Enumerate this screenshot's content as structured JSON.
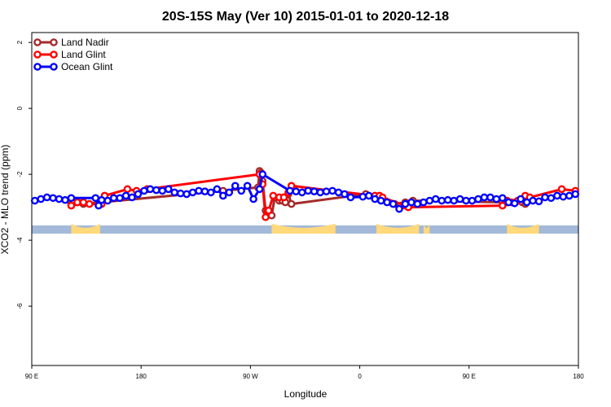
{
  "chart_data": {
    "type": "line",
    "title": "20S-15S May (Ver 10)   2015-01-01 to 2020-12-18",
    "xlabel": "Longitude",
    "ylabel": "XCO2 - MLO trend (ppm)",
    "xlim": [
      90,
      450
    ],
    "ylim": [
      -7.8,
      2.3
    ],
    "x_ticks": [
      {
        "value": 90,
        "label": "90 E"
      },
      {
        "value": 162,
        "label": "180"
      },
      {
        "value": 234,
        "label": "90 W"
      },
      {
        "value": 306,
        "label": "0"
      },
      {
        "value": 378,
        "label": "90 E"
      },
      {
        "value": 450,
        "label": "180"
      }
    ],
    "y_ticks": [
      {
        "value": 2,
        "label": "2"
      },
      {
        "value": 0,
        "label": "0"
      },
      {
        "value": -2,
        "label": "-2"
      },
      {
        "value": -4,
        "label": "-4"
      },
      {
        "value": -6,
        "label": "-6"
      }
    ],
    "legend_position": "top-left",
    "series": [
      {
        "name": "Land Nadir",
        "color": "#a52a2a",
        "points": [
          [
            116,
            -2.9
          ],
          [
            118,
            -2.85
          ],
          [
            120,
            -2.85
          ],
          [
            124,
            -2.9
          ],
          [
            216,
            -2.5
          ],
          [
            239,
            -2.4
          ],
          [
            240,
            -1.9
          ],
          [
            241,
            -1.95
          ],
          [
            242,
            -2.2
          ],
          [
            244,
            -3.1
          ],
          [
            245,
            -3.2
          ],
          [
            248,
            -3.25
          ],
          [
            250,
            -2.7
          ],
          [
            253,
            -2.8
          ],
          [
            255,
            -2.8
          ],
          [
            256,
            -2.7
          ],
          [
            257,
            -2.85
          ],
          [
            259,
            -2.6
          ],
          [
            261,
            -2.9
          ],
          [
            310,
            -2.6
          ],
          [
            320,
            -2.75
          ],
          [
            329,
            -2.9
          ],
          [
            333,
            -2.95
          ],
          [
            336,
            -2.85
          ],
          [
            341,
            -2.8
          ],
          [
            400,
            -2.85
          ],
          [
            403,
            -2.85
          ],
          [
            413,
            -2.85
          ],
          [
            415,
            -2.9
          ]
        ]
      },
      {
        "name": "Land Glint",
        "color": "#ff0000",
        "points": [
          [
            116,
            -2.95
          ],
          [
            120,
            -2.85
          ],
          [
            124,
            -2.85
          ],
          [
            128,
            -2.9
          ],
          [
            136,
            -2.9
          ],
          [
            138,
            -2.65
          ],
          [
            153,
            -2.45
          ],
          [
            159,
            -2.5
          ],
          [
            166,
            -2.45
          ],
          [
            240,
            -2.0
          ],
          [
            242,
            -2.3
          ],
          [
            244,
            -3.3
          ],
          [
            246,
            -3.1
          ],
          [
            249,
            -2.65
          ],
          [
            253,
            -2.7
          ],
          [
            256,
            -2.7
          ],
          [
            259,
            -2.55
          ],
          [
            261,
            -2.35
          ],
          [
            316,
            -2.65
          ],
          [
            319,
            -2.65
          ],
          [
            321,
            -2.7
          ],
          [
            336,
            -2.95
          ],
          [
            338,
            -3.0
          ],
          [
            400,
            -2.95
          ],
          [
            403,
            -2.8
          ],
          [
            406,
            -2.85
          ],
          [
            410,
            -2.8
          ],
          [
            415,
            -2.65
          ],
          [
            418,
            -2.7
          ],
          [
            439,
            -2.45
          ],
          [
            448,
            -2.5
          ]
        ]
      },
      {
        "name": "Ocean Glint",
        "color": "#0000ff",
        "points": [
          [
            92,
            -2.8
          ],
          [
            96,
            -2.75
          ],
          [
            100,
            -2.7
          ],
          [
            104,
            -2.72
          ],
          [
            108,
            -2.75
          ],
          [
            112,
            -2.78
          ],
          [
            116,
            -2.72
          ],
          [
            132,
            -2.72
          ],
          [
            134,
            -2.95
          ],
          [
            136,
            -2.78
          ],
          [
            140,
            -2.8
          ],
          [
            144,
            -2.72
          ],
          [
            148,
            -2.72
          ],
          [
            152,
            -2.65
          ],
          [
            156,
            -2.7
          ],
          [
            160,
            -2.6
          ],
          [
            164,
            -2.5
          ],
          [
            168,
            -2.45
          ],
          [
            172,
            -2.48
          ],
          [
            176,
            -2.5
          ],
          [
            180,
            -2.45
          ],
          [
            184,
            -2.55
          ],
          [
            188,
            -2.58
          ],
          [
            192,
            -2.6
          ],
          [
            196,
            -2.55
          ],
          [
            200,
            -2.5
          ],
          [
            204,
            -2.52
          ],
          [
            208,
            -2.55
          ],
          [
            212,
            -2.45
          ],
          [
            216,
            -2.65
          ],
          [
            220,
            -2.55
          ],
          [
            224,
            -2.35
          ],
          [
            228,
            -2.5
          ],
          [
            232,
            -2.35
          ],
          [
            236,
            -2.75
          ],
          [
            240,
            -2.45
          ],
          [
            242,
            -2.0
          ],
          [
            260,
            -2.5
          ],
          [
            264,
            -2.52
          ],
          [
            268,
            -2.55
          ],
          [
            272,
            -2.5
          ],
          [
            276,
            -2.52
          ],
          [
            280,
            -2.55
          ],
          [
            284,
            -2.52
          ],
          [
            288,
            -2.5
          ],
          [
            292,
            -2.55
          ],
          [
            296,
            -2.6
          ],
          [
            300,
            -2.7
          ],
          [
            308,
            -2.68
          ],
          [
            312,
            -2.65
          ],
          [
            316,
            -2.75
          ],
          [
            320,
            -2.8
          ],
          [
            324,
            -2.85
          ],
          [
            328,
            -2.9
          ],
          [
            332,
            -3.05
          ],
          [
            336,
            -2.9
          ],
          [
            340,
            -2.85
          ],
          [
            344,
            -2.9
          ],
          [
            348,
            -2.85
          ],
          [
            352,
            -2.8
          ],
          [
            356,
            -2.75
          ],
          [
            360,
            -2.8
          ],
          [
            364,
            -2.78
          ],
          [
            368,
            -2.8
          ],
          [
            372,
            -2.75
          ],
          [
            376,
            -2.8
          ],
          [
            380,
            -2.8
          ],
          [
            384,
            -2.75
          ],
          [
            388,
            -2.7
          ],
          [
            392,
            -2.7
          ],
          [
            396,
            -2.75
          ],
          [
            400,
            -2.72
          ],
          [
            404,
            -2.85
          ],
          [
            408,
            -2.88
          ],
          [
            412,
            -2.75
          ],
          [
            416,
            -2.85
          ],
          [
            420,
            -2.8
          ],
          [
            424,
            -2.82
          ],
          [
            428,
            -2.7
          ],
          [
            432,
            -2.72
          ],
          [
            436,
            -2.65
          ],
          [
            440,
            -2.68
          ],
          [
            444,
            -2.65
          ],
          [
            448,
            -2.6
          ]
        ]
      }
    ],
    "background_band": {
      "y_range": [
        -3.8,
        -3.55
      ],
      "ocean_color": "#a3b9da",
      "land_color": "#ffd97a",
      "land_segments": [
        [
          116,
          -3.6,
          135,
          -3.6
        ],
        [
          248,
          -3.6,
          290,
          -3.6
        ],
        [
          317,
          -3.6,
          345,
          -3.6
        ],
        [
          348,
          -3.6,
          352,
          -3.6
        ],
        [
          403,
          -3.6,
          424,
          -3.6
        ]
      ]
    }
  }
}
